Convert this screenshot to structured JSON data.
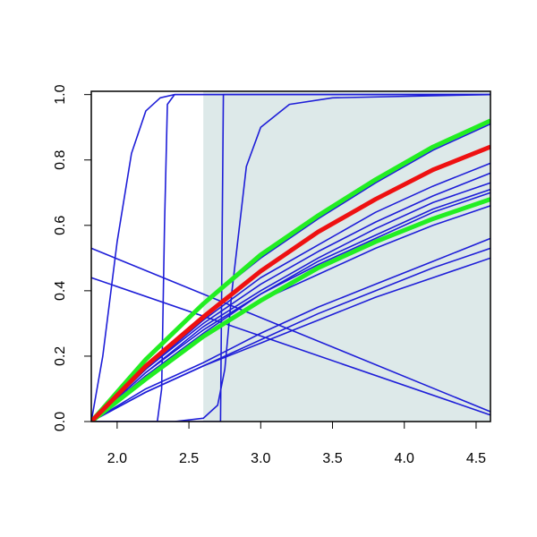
{
  "chart_data": {
    "type": "line",
    "xlim": [
      1.82,
      4.6
    ],
    "ylim": [
      0,
      1.01
    ],
    "xticks": [
      {
        "value": 2.0,
        "label": "2.0"
      },
      2.5,
      {
        "value": 3.0,
        "label": "3.0"
      },
      3.5,
      {
        "value": 4.0,
        "label": "4.0"
      },
      4.5
    ],
    "yticks": [
      {
        "value": 0,
        "label": "0.0"
      },
      0.2,
      0.4,
      0.6,
      0.8,
      {
        "value": 1,
        "label": "1.0"
      }
    ],
    "shaded_region": {
      "xmin": 2.6,
      "xmax": 4.6,
      "color": "#dde9e9"
    },
    "series": [
      {
        "color": "#1e1ed8",
        "linewidth": 1.6,
        "x": [
          1.82,
          1.9,
          2.0,
          2.1,
          2.2,
          2.3,
          2.4,
          4.6
        ],
        "values": [
          0,
          0.2,
          0.55,
          0.82,
          0.95,
          0.99,
          1,
          1
        ]
      },
      {
        "color": "#1e1ed8",
        "linewidth": 1.6,
        "x": [
          1.82,
          2.28,
          2.31,
          2.33,
          2.35,
          2.4,
          4.6
        ],
        "values": [
          0,
          0,
          0.1,
          0.6,
          0.97,
          1,
          1
        ]
      },
      {
        "color": "#1e1ed8",
        "linewidth": 1.6,
        "x": [
          1.82,
          2.72,
          2.73,
          2.74,
          4.6
        ],
        "values": [
          0,
          0,
          0.5,
          1,
          1
        ]
      },
      {
        "color": "#1e1ed8",
        "linewidth": 1.6,
        "x": [
          1.82,
          2.4,
          2.6,
          2.7,
          2.75,
          2.8,
          2.9,
          3.0,
          3.2,
          3.5,
          4.6
        ],
        "values": [
          0,
          0,
          0.01,
          0.05,
          0.16,
          0.4,
          0.78,
          0.9,
          0.97,
          0.99,
          1
        ]
      },
      {
        "color": "#1e1ed8",
        "linewidth": 1.6,
        "x": [
          1.82,
          4.6
        ],
        "values": [
          0.53,
          0.03
        ]
      },
      {
        "color": "#1e1ed8",
        "linewidth": 1.6,
        "x": [
          1.82,
          4.6
        ],
        "values": [
          0.44,
          0.02
        ]
      },
      {
        "color": "#1e1ed8",
        "linewidth": 1.6,
        "x": [
          1.82,
          2.2,
          2.6,
          3.0,
          3.4,
          3.8,
          4.2,
          4.6
        ],
        "values": [
          0,
          0.19,
          0.36,
          0.5,
          0.62,
          0.73,
          0.83,
          0.91
        ]
      },
      {
        "color": "#1e1ed8",
        "linewidth": 1.6,
        "x": [
          1.82,
          2.2,
          2.6,
          3.0,
          3.4,
          3.8,
          4.2,
          4.6
        ],
        "values": [
          0,
          0.16,
          0.31,
          0.44,
          0.54,
          0.64,
          0.72,
          0.79
        ]
      },
      {
        "color": "#1e1ed8",
        "linewidth": 1.6,
        "x": [
          1.82,
          2.2,
          2.6,
          3.0,
          3.4,
          3.8,
          4.2,
          4.6
        ],
        "values": [
          0,
          0.16,
          0.3,
          0.42,
          0.52,
          0.61,
          0.69,
          0.76
        ]
      },
      {
        "color": "#1e1ed8",
        "linewidth": 1.6,
        "x": [
          1.82,
          2.2,
          2.6,
          3.0,
          3.4,
          3.8,
          4.2,
          4.6
        ],
        "values": [
          0,
          0.15,
          0.29,
          0.4,
          0.5,
          0.59,
          0.67,
          0.73
        ]
      },
      {
        "color": "#1e1ed8",
        "linewidth": 1.6,
        "x": [
          1.82,
          2.2,
          2.6,
          3.0,
          3.4,
          3.8,
          4.2,
          4.6
        ],
        "values": [
          0,
          0.15,
          0.28,
          0.39,
          0.49,
          0.57,
          0.65,
          0.71
        ]
      },
      {
        "color": "#1e1ed8",
        "linewidth": 1.6,
        "x": [
          1.82,
          2.2,
          2.6,
          3.0,
          3.4,
          3.8,
          4.2,
          4.6
        ],
        "values": [
          0,
          0.14,
          0.27,
          0.39,
          0.48,
          0.56,
          0.64,
          0.7
        ]
      },
      {
        "color": "#1e1ed8",
        "linewidth": 1.6,
        "x": [
          1.82,
          2.2,
          2.6,
          3.0,
          3.4,
          3.8,
          4.2,
          4.6
        ],
        "values": [
          0,
          0.14,
          0.26,
          0.37,
          0.45,
          0.53,
          0.6,
          0.66
        ]
      },
      {
        "color": "#1e1ed8",
        "linewidth": 1.6,
        "x": [
          1.82,
          2.2,
          2.6,
          3.0,
          3.4,
          3.8,
          4.2,
          4.6
        ],
        "values": [
          0,
          0.1,
          0.18,
          0.27,
          0.35,
          0.42,
          0.49,
          0.56
        ]
      },
      {
        "color": "#1e1ed8",
        "linewidth": 1.6,
        "x": [
          1.82,
          2.2,
          2.6,
          3.0,
          3.4,
          3.8,
          4.2,
          4.6
        ],
        "values": [
          0,
          0.09,
          0.17,
          0.25,
          0.33,
          0.4,
          0.47,
          0.53
        ]
      },
      {
        "color": "#1e1ed8",
        "linewidth": 1.6,
        "x": [
          1.82,
          2.2,
          2.6,
          3.0,
          3.4,
          3.8,
          4.2,
          4.6
        ],
        "values": [
          0,
          0.09,
          0.17,
          0.24,
          0.31,
          0.38,
          0.44,
          0.5
        ]
      },
      {
        "color": "#22ee22",
        "linewidth": 5,
        "x": [
          1.82,
          2.2,
          2.6,
          3.0,
          3.4,
          3.8,
          4.2,
          4.6
        ],
        "values": [
          0,
          0.13,
          0.26,
          0.37,
          0.47,
          0.55,
          0.62,
          0.68
        ]
      },
      {
        "color": "#22ee22",
        "linewidth": 5,
        "x": [
          1.82,
          2.2,
          2.6,
          3.0,
          3.4,
          3.8,
          4.2,
          4.6
        ],
        "values": [
          0,
          0.19,
          0.36,
          0.51,
          0.63,
          0.74,
          0.84,
          0.92
        ]
      },
      {
        "color": "#ee1111",
        "linewidth": 5,
        "x": [
          1.82,
          2.2,
          2.6,
          3.0,
          3.4,
          3.8,
          4.2,
          4.6
        ],
        "values": [
          0,
          0.17,
          0.32,
          0.46,
          0.58,
          0.68,
          0.77,
          0.84
        ]
      }
    ]
  }
}
